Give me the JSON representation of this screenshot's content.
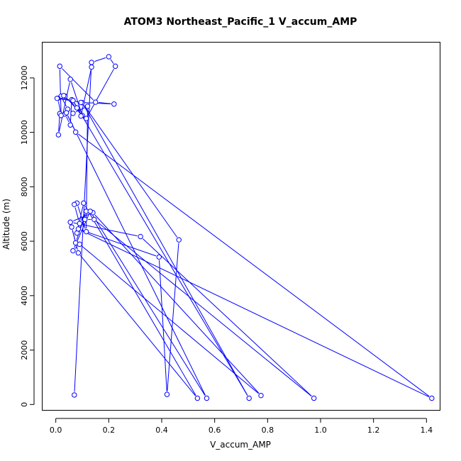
{
  "chart_data": {
    "type": "line",
    "title": "ATOM3 Northeast_Pacific_1 V_accum_AMP",
    "xlabel": "V_accum_AMP",
    "ylabel": "Altitude (m)",
    "xlim": [
      -0.05,
      1.45
    ],
    "ylim": [
      -200,
      13300
    ],
    "xticks": [
      0.0,
      0.2,
      0.4,
      0.6,
      0.8,
      1.0,
      1.2,
      1.4
    ],
    "xtick_labels": [
      "0.0",
      "0.2",
      "0.4",
      "0.6",
      "0.8",
      "1.0",
      "1.2",
      "1.4"
    ],
    "yticks": [
      0,
      2000,
      4000,
      6000,
      8000,
      10000,
      12000
    ],
    "ytick_labels": [
      "0",
      "2000",
      "4000",
      "6000",
      "8000",
      "10000",
      "12000"
    ],
    "grid": false,
    "series_color": "#0000ff",
    "series": [
      {
        "x": [
          0.07,
          0.135,
          0.2,
          0.225,
          0.115,
          0.06,
          0.055,
          0.035,
          0.015,
          0.01,
          0.055,
          0.1,
          0.035,
          0.02,
          0.045,
          0.065,
          0.12,
          0.115,
          0.08,
          0.07,
          0.09,
          0.115,
          0.075,
          0.06,
          0.085,
          0.535,
          0.105,
          0.08,
          0.11,
          0.145,
          0.975,
          0.32,
          0.055,
          0.14,
          0.775,
          0.09,
          0.065,
          0.13,
          0.57,
          0.04,
          0.075,
          1.42,
          0.085,
          0.39,
          0.42,
          0.465,
          0.1,
          0.73,
          0.065,
          0.008,
          0.02,
          0.015,
          0.15,
          0.22,
          0.095,
          0.005,
          0.03,
          0.08,
          0.095,
          0.135
        ],
        "y": [
          350,
          12570,
          12780,
          12430,
          10510,
          11200,
          10270,
          10670,
          10690,
          9910,
          11950,
          10620,
          11330,
          11330,
          10850,
          10700,
          10960,
          6350,
          7400,
          7350,
          6650,
          7100,
          5940,
          6520,
          5570,
          230,
          7400,
          6300,
          6800,
          6800,
          230,
          6170,
          6700,
          7050,
          330,
          5890,
          5650,
          7100,
          230,
          10720,
          10010,
          230,
          6450,
          5420,
          370,
          6050,
          11090,
          230,
          11170,
          11250,
          10620,
          12430,
          11110,
          11040,
          11100,
          11250,
          11350,
          10900,
          10600,
          12400
        ]
      }
    ]
  }
}
